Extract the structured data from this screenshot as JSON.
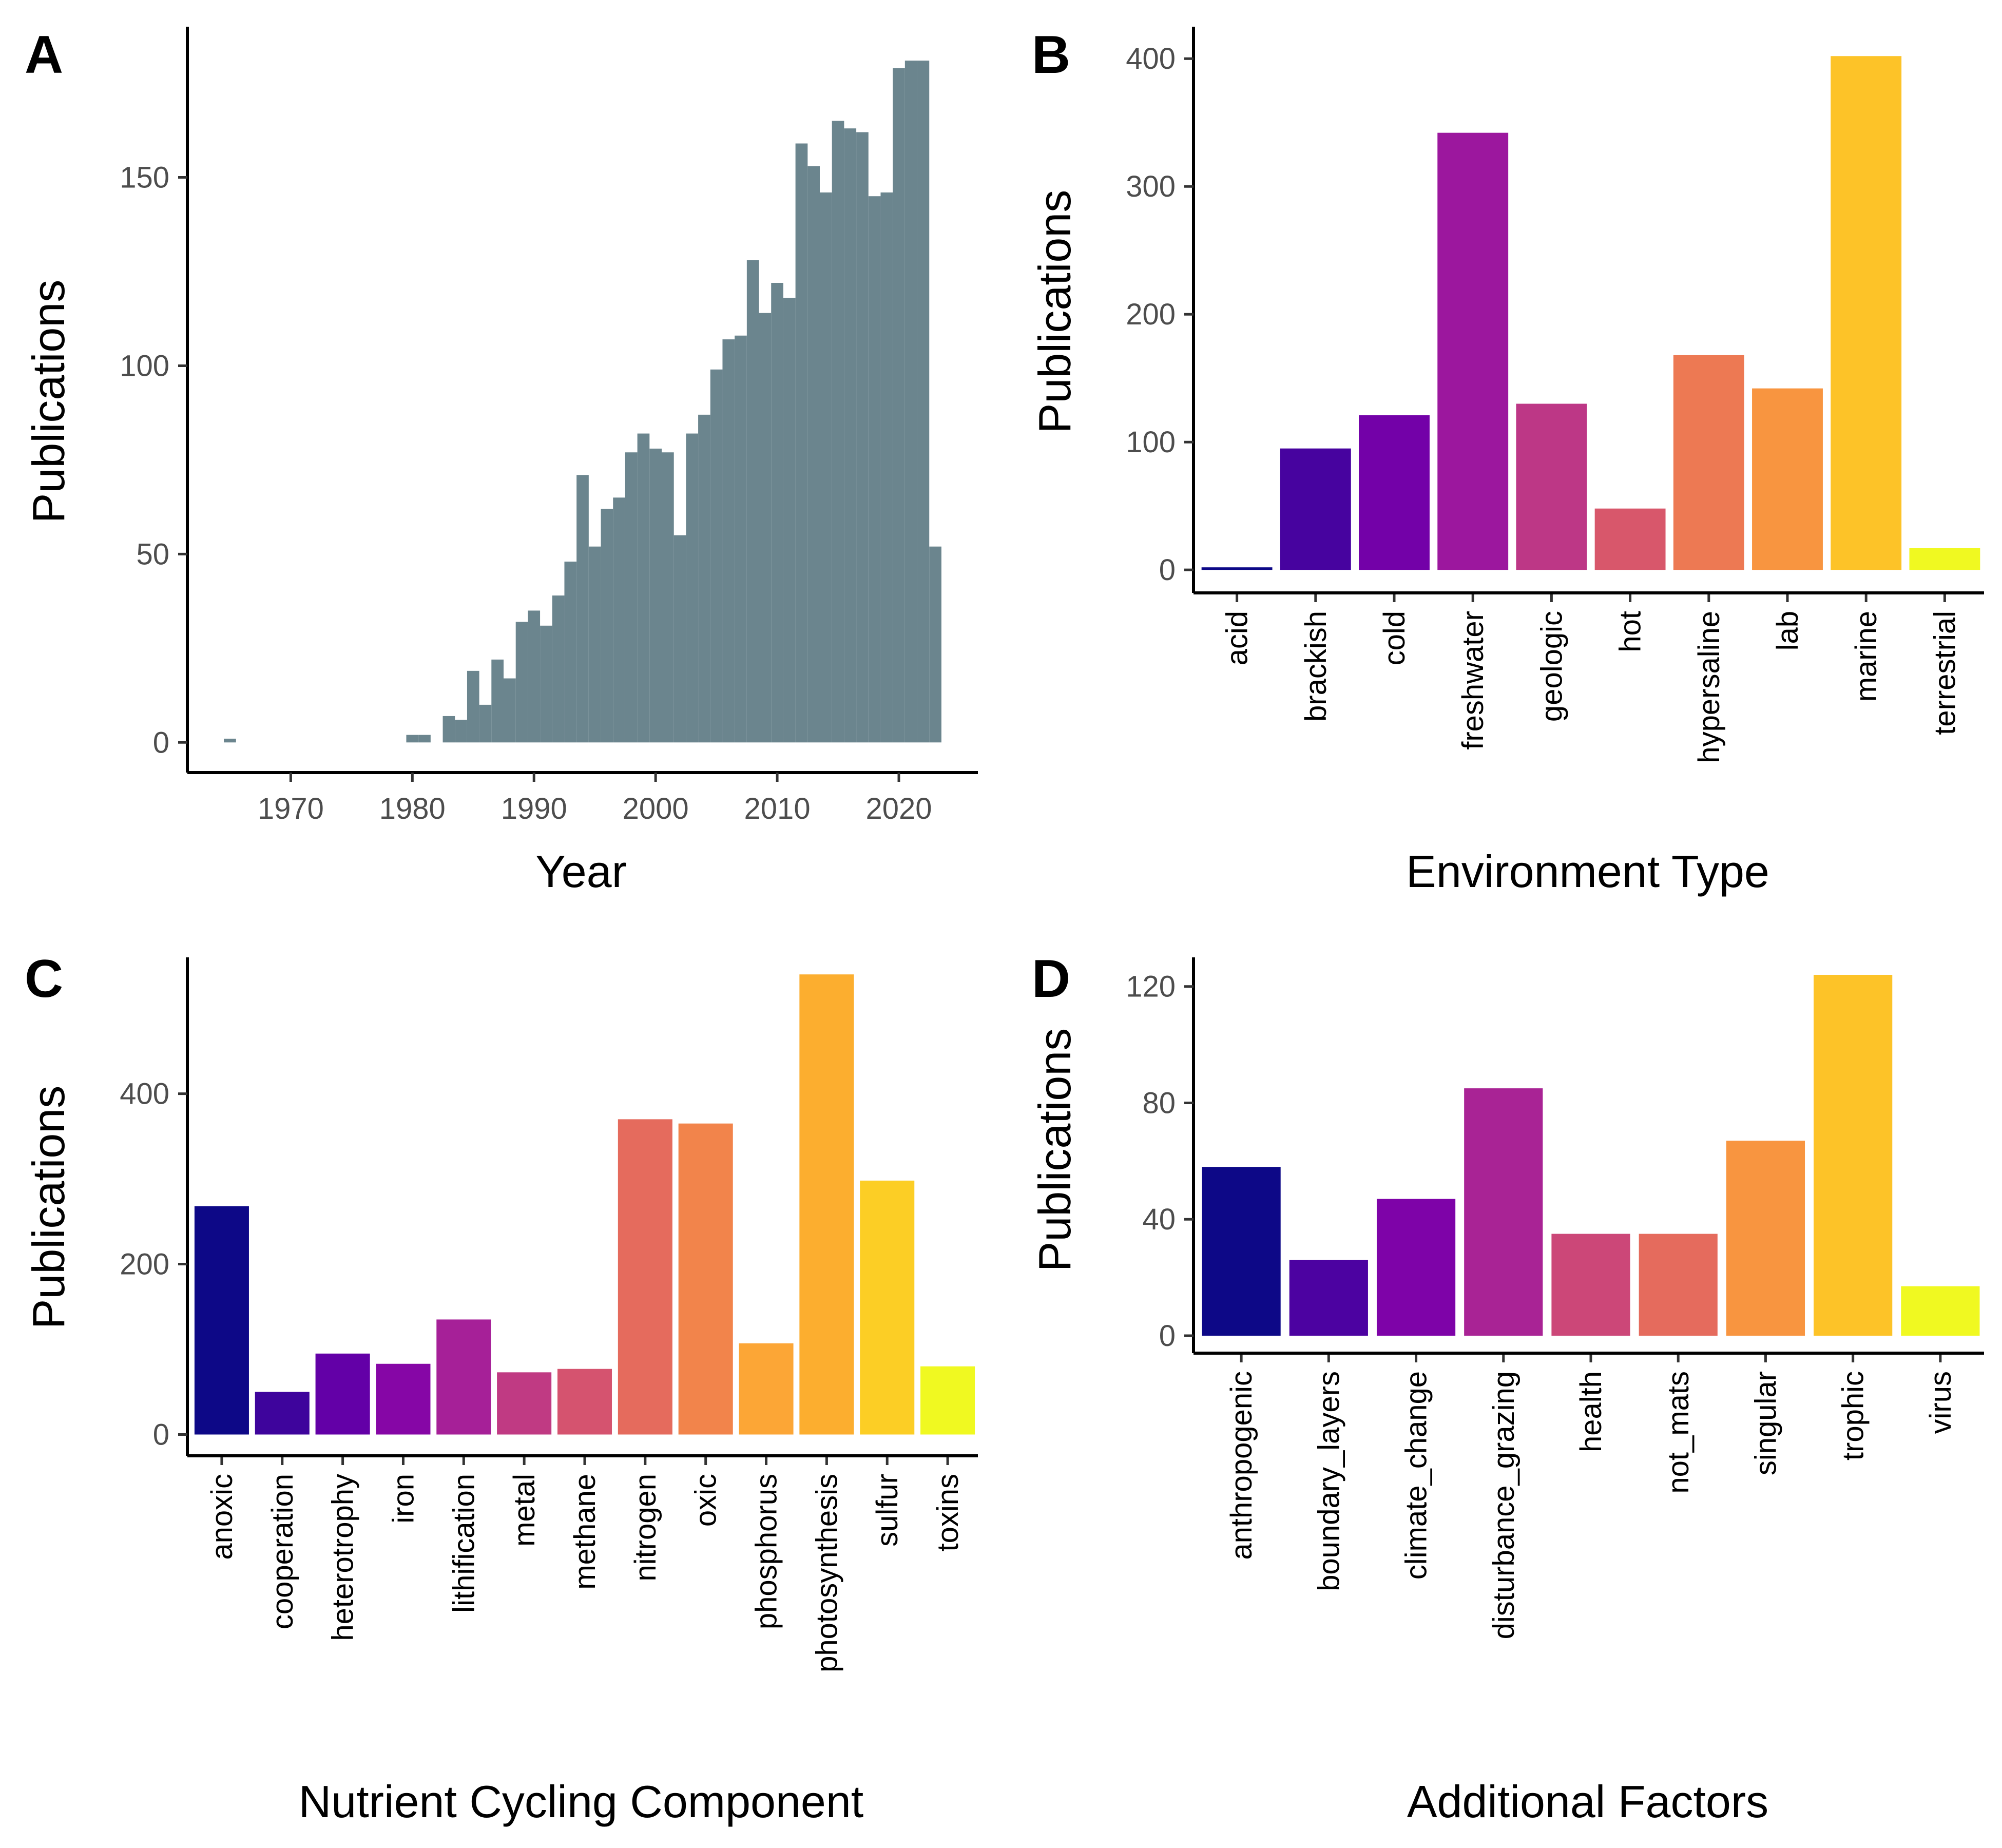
{
  "chart_data": [
    {
      "panel": "A",
      "type": "bar",
      "xlabel": "Year",
      "ylabel": "Publications",
      "xlim": [
        1961.5,
        2026.5
      ],
      "ylim": [
        -8,
        190
      ],
      "xticks": [
        "1970",
        "1980",
        "1990",
        "2000",
        "2010",
        "2020"
      ],
      "yticks": [
        "0",
        "50",
        "100",
        "150"
      ],
      "bar_color": "#6b858e",
      "x": [
        1965,
        1980,
        1981,
        1983,
        1984,
        1985,
        1986,
        1987,
        1988,
        1989,
        1990,
        1991,
        1992,
        1993,
        1994,
        1995,
        1996,
        1997,
        1998,
        1999,
        2000,
        2001,
        2002,
        2003,
        2004,
        2005,
        2006,
        2007,
        2008,
        2009,
        2010,
        2011,
        2012,
        2013,
        2014,
        2015,
        2016,
        2017,
        2018,
        2019,
        2020,
        2021,
        2022,
        2023
      ],
      "values": [
        1,
        2,
        2,
        7,
        6,
        19,
        10,
        22,
        17,
        32,
        35,
        31,
        39,
        48,
        71,
        52,
        62,
        65,
        77,
        82,
        78,
        77,
        55,
        82,
        87,
        99,
        107,
        108,
        128,
        114,
        122,
        118,
        159,
        153,
        146,
        165,
        163,
        162,
        145,
        146,
        179,
        181,
        181,
        52
      ]
    },
    {
      "panel": "B",
      "type": "bar",
      "xlabel": "Environment Type",
      "ylabel": "Publications",
      "ylim": [
        -18,
        425
      ],
      "yticks": [
        "0",
        "100",
        "200",
        "300",
        "400"
      ],
      "categories": [
        "acid",
        "brackish",
        "cold",
        "freshwater",
        "geologic",
        "hot",
        "hypersaline",
        "lab",
        "marine",
        "terrestrial"
      ],
      "values": [
        2,
        95,
        121,
        342,
        130,
        48,
        168,
        142,
        402,
        17
      ],
      "colors": [
        "#0d0887",
        "#47039f",
        "#7301a8",
        "#9c179e",
        "#bd3786",
        "#d8576b",
        "#ed7953",
        "#f89540",
        "#fdc328",
        "#f0f921"
      ]
    },
    {
      "panel": "C",
      "type": "bar",
      "xlabel": "Nutrient Cycling Component",
      "ylabel": "Publications",
      "ylim": [
        -25,
        560
      ],
      "yticks": [
        "0",
        "200",
        "400"
      ],
      "categories": [
        "anoxic",
        "cooperation",
        "heterotrophy",
        "iron",
        "lithification",
        "metal",
        "methane",
        "nitrogen",
        "oxic",
        "phosphorus",
        "photosynthesis",
        "sulfur",
        "toxins"
      ],
      "values": [
        268,
        50,
        95,
        83,
        135,
        73,
        77,
        370,
        365,
        107,
        540,
        298,
        80
      ],
      "colors": [
        "#0d0887",
        "#3e049c",
        "#6300a7",
        "#8606a6",
        "#a62098",
        "#c03a83",
        "#d5536f",
        "#e56b5d",
        "#f2844b",
        "#fca636",
        "#fcae2f",
        "#fcce25",
        "#f0f921"
      ]
    },
    {
      "panel": "D",
      "type": "bar",
      "xlabel": "Additional Factors",
      "ylabel": "Publications",
      "ylim": [
        -6,
        130
      ],
      "yticks": [
        "0",
        "40",
        "80",
        "120"
      ],
      "categories": [
        "anthropogenic",
        "boundary_layers",
        "climate_change",
        "disturbance_grazing",
        "health",
        "not_mats",
        "singular",
        "trophic",
        "virus"
      ],
      "values": [
        58,
        26,
        47,
        85,
        35,
        35,
        67,
        124,
        17
      ],
      "colors": [
        "#0d0887",
        "#4c02a1",
        "#7e03a8",
        "#a92395",
        "#cc4778",
        "#e56b5d",
        "#f89540",
        "#fdc328",
        "#f0f921"
      ]
    }
  ]
}
